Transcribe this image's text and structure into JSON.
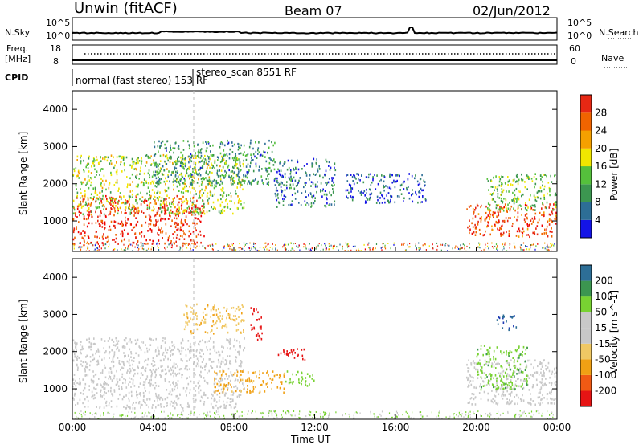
{
  "header": {
    "site": "Unwin (fitACF)",
    "beam": "Beam 07",
    "date": "02/Jun/2012"
  },
  "top_panels": {
    "nsky": {
      "label": "N.Sky",
      "scale_labels": [
        "10^5",
        "10^0"
      ],
      "right_scale_labels": [
        "10^5",
        "10^0"
      ],
      "right_label": "N.Search"
    },
    "freq": {
      "label_line1": "Freq.",
      "label_line2": "[MHz]",
      "left_scale": [
        "18",
        "8"
      ],
      "right_scale": [
        "60",
        "0"
      ],
      "right_label": "Nave"
    },
    "cpid": {
      "label": "CPID",
      "program_1": "normal (fast stereo) 153 RF",
      "program_2": "stereo_scan 8551 RF"
    }
  },
  "colors": {
    "power_scale": [
      "#1414e6",
      "#2d6e96",
      "#3c9650",
      "#55c03c",
      "#f0e600",
      "#f5a000",
      "#f06400",
      "#e62814",
      "#f00000"
    ],
    "velocity_scale": [
      "#e61414",
      "#f05a14",
      "#f0a014",
      "#f0c864",
      "#c8c8c8",
      "#c8c8c8",
      "#78d232",
      "#3c9650",
      "#2d6e96",
      "#1e3cb4"
    ],
    "gray_scatter": "#c8c8c8"
  },
  "chart_data": [
    {
      "type": "heatmap",
      "title": "Power",
      "xlabel": "Time UT",
      "ylabel": "Slant Range [km]",
      "colorbar_label": "Power [dB]",
      "colorbar_ticks": [
        "4",
        "8",
        "12",
        "16",
        "20",
        "24",
        "28"
      ],
      "x_ticks": [
        "00:00",
        "04:00",
        "08:00",
        "12:00",
        "16:00",
        "20:00",
        "00:00"
      ],
      "y_ticks": [
        "1000",
        "2000",
        "3000",
        "4000"
      ],
      "xlim_hours": [
        0,
        24
      ],
      "ylim_km": [
        180,
        4500
      ],
      "regions": [
        {
          "t0": 0.0,
          "t1": 6.5,
          "r0": 400,
          "r1": 1700,
          "power": 26
        },
        {
          "t0": 0.0,
          "t1": 8.5,
          "r0": 1200,
          "r1": 2800,
          "power": 14
        },
        {
          "t0": 4.0,
          "t1": 10.0,
          "r0": 2000,
          "r1": 3200,
          "power": 8
        },
        {
          "t0": 10.0,
          "t1": 13.0,
          "r0": 1400,
          "r1": 2700,
          "power": 6
        },
        {
          "t0": 13.5,
          "t1": 17.5,
          "r0": 1500,
          "r1": 2300,
          "power": 4
        },
        {
          "t0": 19.5,
          "t1": 24.0,
          "r0": 600,
          "r1": 1500,
          "power": 25
        },
        {
          "t0": 20.5,
          "t1": 24.0,
          "r0": 1300,
          "r1": 2300,
          "power": 12
        }
      ]
    },
    {
      "type": "heatmap",
      "title": "Velocity",
      "xlabel": "Time UT",
      "ylabel": "Slant Range [km]",
      "colorbar_label": "Velocity [m s^-1]",
      "colorbar_ticks": [
        "-200",
        "-100",
        "-50",
        "-15",
        "15",
        "50",
        "100",
        "200"
      ],
      "x_ticks": [
        "00:00",
        "04:00",
        "08:00",
        "12:00",
        "16:00",
        "20:00",
        "00:00"
      ],
      "y_ticks": [
        "1000",
        "2000",
        "3000",
        "4000"
      ],
      "xlim_hours": [
        0,
        24
      ],
      "ylim_km": [
        180,
        4500
      ],
      "regions": [
        {
          "t0": 0.0,
          "t1": 8.5,
          "r0": 500,
          "r1": 2400,
          "velocity": 0
        },
        {
          "t0": 5.5,
          "t1": 8.5,
          "r0": 2500,
          "r1": 3300,
          "velocity": -40
        },
        {
          "t0": 8.8,
          "t1": 9.4,
          "r0": 2300,
          "r1": 3200,
          "velocity": -220
        },
        {
          "t0": 10.0,
          "t1": 11.5,
          "r0": 1800,
          "r1": 2100,
          "velocity": -220
        },
        {
          "t0": 7.0,
          "t1": 10.5,
          "r0": 900,
          "r1": 1500,
          "velocity": -60
        },
        {
          "t0": 10.5,
          "t1": 12.0,
          "r0": 1100,
          "r1": 1500,
          "velocity": 30
        },
        {
          "t0": 19.5,
          "t1": 24.0,
          "r0": 600,
          "r1": 1800,
          "velocity": 0
        },
        {
          "t0": 20.0,
          "t1": 22.5,
          "r0": 1000,
          "r1": 2200,
          "velocity": 40
        },
        {
          "t0": 21.0,
          "t1": 22.0,
          "r0": 2600,
          "r1": 3000,
          "velocity": 200
        }
      ]
    }
  ]
}
